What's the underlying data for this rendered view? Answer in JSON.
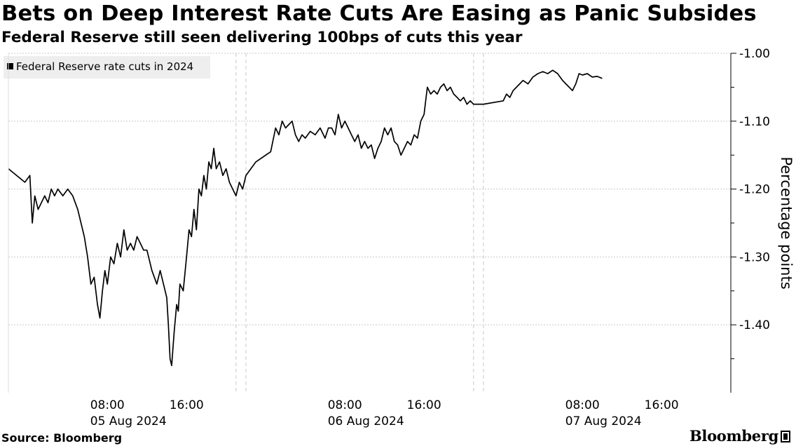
{
  "header": {
    "title": "Bets on Deep Interest Rate Cuts Are Easing as Panic Subsides",
    "subtitle": "Federal Reserve still seen delivering 100bps of cuts this year"
  },
  "footer": {
    "source": "Source: Bloomberg",
    "logo_text": "Bloomberg"
  },
  "colors": {
    "line": "#000000",
    "grid": "#c8c8c8",
    "legend_bg": "#eeeeee"
  },
  "chart_data": {
    "type": "line",
    "title": "Bets on Deep Interest Rate Cuts Are Easing as Panic Subsides",
    "subtitle": "Federal Reserve still seen delivering 100bps of cuts this year",
    "ylabel": "Percentage points",
    "y_inverted": true,
    "y_axis_position": "right",
    "ylim": [
      -1.0,
      -1.5
    ],
    "xlim": [
      "2024-08-04T22:00",
      "2024-08-07T23:00"
    ],
    "grid": "horizontal dotted",
    "legend": {
      "position": "top-left",
      "entries": [
        "Federal Reserve rate cuts in 2024"
      ]
    },
    "y_ticks": [
      {
        "value": -1.0,
        "label": "-1.00"
      },
      {
        "value": -1.1,
        "label": "-1.10"
      },
      {
        "value": -1.2,
        "label": "-1.20"
      },
      {
        "value": -1.3,
        "label": "-1.30"
      },
      {
        "value": -1.4,
        "label": "-1.40"
      }
    ],
    "x_ticks": [
      {
        "t": "2024-08-05T08:00",
        "time": "08:00",
        "date": "05 Aug 2024"
      },
      {
        "t": "2024-08-05T16:00",
        "time": "16:00",
        "date": ""
      },
      {
        "t": "2024-08-06T08:00",
        "time": "08:00",
        "date": "06 Aug 2024"
      },
      {
        "t": "2024-08-06T16:00",
        "time": "16:00",
        "date": ""
      },
      {
        "t": "2024-08-07T08:00",
        "time": "08:00",
        "date": "07 Aug 2024"
      },
      {
        "t": "2024-08-07T16:00",
        "time": "16:00",
        "date": ""
      }
    ],
    "session_breaks": [
      "2024-08-05T21:00",
      "2024-08-05T22:00",
      "2024-08-06T21:00",
      "2024-08-06T22:00"
    ],
    "series": [
      {
        "name": "Federal Reserve rate cuts in 2024",
        "points": [
          [
            "2024-08-04T22:00",
            -1.17
          ],
          [
            "2024-08-04T23:40",
            -1.19
          ],
          [
            "2024-08-05T00:10",
            -1.18
          ],
          [
            "2024-08-05T00:25",
            -1.25
          ],
          [
            "2024-08-05T00:40",
            -1.21
          ],
          [
            "2024-08-05T01:00",
            -1.23
          ],
          [
            "2024-08-05T01:20",
            -1.22
          ],
          [
            "2024-08-05T01:40",
            -1.21
          ],
          [
            "2024-08-05T02:00",
            -1.22
          ],
          [
            "2024-08-05T02:20",
            -1.2
          ],
          [
            "2024-08-05T02:40",
            -1.21
          ],
          [
            "2024-08-05T03:00",
            -1.2
          ],
          [
            "2024-08-05T03:30",
            -1.21
          ],
          [
            "2024-08-05T04:00",
            -1.2
          ],
          [
            "2024-08-05T04:30",
            -1.21
          ],
          [
            "2024-08-05T05:00",
            -1.23
          ],
          [
            "2024-08-05T05:20",
            -1.25
          ],
          [
            "2024-08-05T05:40",
            -1.27
          ],
          [
            "2024-08-05T06:00",
            -1.3
          ],
          [
            "2024-08-05T06:20",
            -1.34
          ],
          [
            "2024-08-05T06:40",
            -1.33
          ],
          [
            "2024-08-05T07:00",
            -1.37
          ],
          [
            "2024-08-05T07:15",
            -1.39
          ],
          [
            "2024-08-05T07:30",
            -1.35
          ],
          [
            "2024-08-05T07:45",
            -1.32
          ],
          [
            "2024-08-05T08:00",
            -1.34
          ],
          [
            "2024-08-05T08:20",
            -1.3
          ],
          [
            "2024-08-05T08:40",
            -1.31
          ],
          [
            "2024-08-05T09:00",
            -1.28
          ],
          [
            "2024-08-05T09:20",
            -1.3
          ],
          [
            "2024-08-05T09:40",
            -1.26
          ],
          [
            "2024-08-05T10:00",
            -1.29
          ],
          [
            "2024-08-05T10:20",
            -1.28
          ],
          [
            "2024-08-05T10:40",
            -1.29
          ],
          [
            "2024-08-05T11:00",
            -1.27
          ],
          [
            "2024-08-05T11:20",
            -1.28
          ],
          [
            "2024-08-05T11:40",
            -1.29
          ],
          [
            "2024-08-05T12:00",
            -1.29
          ],
          [
            "2024-08-05T12:30",
            -1.32
          ],
          [
            "2024-08-05T13:00",
            -1.34
          ],
          [
            "2024-08-05T13:20",
            -1.32
          ],
          [
            "2024-08-05T13:40",
            -1.34
          ],
          [
            "2024-08-05T14:00",
            -1.36
          ],
          [
            "2024-08-05T14:10",
            -1.4
          ],
          [
            "2024-08-05T14:20",
            -1.45
          ],
          [
            "2024-08-05T14:30",
            -1.46
          ],
          [
            "2024-08-05T14:45",
            -1.41
          ],
          [
            "2024-08-05T15:00",
            -1.37
          ],
          [
            "2024-08-05T15:10",
            -1.38
          ],
          [
            "2024-08-05T15:20",
            -1.34
          ],
          [
            "2024-08-05T15:40",
            -1.35
          ],
          [
            "2024-08-05T16:00",
            -1.3
          ],
          [
            "2024-08-05T16:15",
            -1.26
          ],
          [
            "2024-08-05T16:30",
            -1.27
          ],
          [
            "2024-08-05T16:45",
            -1.23
          ],
          [
            "2024-08-05T17:00",
            -1.26
          ],
          [
            "2024-08-05T17:15",
            -1.2
          ],
          [
            "2024-08-05T17:30",
            -1.21
          ],
          [
            "2024-08-05T17:45",
            -1.18
          ],
          [
            "2024-08-05T18:00",
            -1.2
          ],
          [
            "2024-08-05T18:15",
            -1.16
          ],
          [
            "2024-08-05T18:30",
            -1.17
          ],
          [
            "2024-08-05T18:45",
            -1.14
          ],
          [
            "2024-08-05T19:00",
            -1.17
          ],
          [
            "2024-08-05T19:20",
            -1.16
          ],
          [
            "2024-08-05T19:40",
            -1.18
          ],
          [
            "2024-08-05T20:00",
            -1.17
          ],
          [
            "2024-08-05T20:20",
            -1.19
          ],
          [
            "2024-08-05T20:40",
            -1.2
          ],
          [
            "2024-08-05T21:00",
            -1.21
          ],
          [
            "2024-08-05T21:20",
            -1.19
          ],
          [
            "2024-08-05T21:40",
            -1.2
          ],
          [
            "2024-08-05T22:00",
            -1.18
          ],
          [
            "2024-08-05T23:00",
            -1.16
          ],
          [
            "2024-08-06T00:30",
            -1.145
          ],
          [
            "2024-08-06T01:00",
            -1.11
          ],
          [
            "2024-08-06T01:20",
            -1.12
          ],
          [
            "2024-08-06T01:40",
            -1.1
          ],
          [
            "2024-08-06T02:00",
            -1.11
          ],
          [
            "2024-08-06T02:20",
            -1.105
          ],
          [
            "2024-08-06T02:40",
            -1.1
          ],
          [
            "2024-08-06T03:00",
            -1.12
          ],
          [
            "2024-08-06T03:20",
            -1.13
          ],
          [
            "2024-08-06T03:40",
            -1.12
          ],
          [
            "2024-08-06T04:00",
            -1.125
          ],
          [
            "2024-08-06T04:30",
            -1.115
          ],
          [
            "2024-08-06T05:00",
            -1.12
          ],
          [
            "2024-08-06T05:30",
            -1.11
          ],
          [
            "2024-08-06T06:00",
            -1.125
          ],
          [
            "2024-08-06T06:20",
            -1.11
          ],
          [
            "2024-08-06T06:40",
            -1.11
          ],
          [
            "2024-08-06T07:00",
            -1.12
          ],
          [
            "2024-08-06T07:20",
            -1.09
          ],
          [
            "2024-08-06T07:40",
            -1.11
          ],
          [
            "2024-08-06T08:00",
            -1.1
          ],
          [
            "2024-08-06T08:20",
            -1.11
          ],
          [
            "2024-08-06T08:40",
            -1.12
          ],
          [
            "2024-08-06T09:00",
            -1.13
          ],
          [
            "2024-08-06T09:20",
            -1.12
          ],
          [
            "2024-08-06T09:40",
            -1.14
          ],
          [
            "2024-08-06T10:00",
            -1.13
          ],
          [
            "2024-08-06T10:20",
            -1.14
          ],
          [
            "2024-08-06T10:40",
            -1.135
          ],
          [
            "2024-08-06T11:00",
            -1.155
          ],
          [
            "2024-08-06T11:20",
            -1.14
          ],
          [
            "2024-08-06T11:40",
            -1.13
          ],
          [
            "2024-08-06T12:00",
            -1.11
          ],
          [
            "2024-08-06T12:20",
            -1.12
          ],
          [
            "2024-08-06T12:40",
            -1.11
          ],
          [
            "2024-08-06T13:00",
            -1.13
          ],
          [
            "2024-08-06T13:20",
            -1.135
          ],
          [
            "2024-08-06T13:40",
            -1.15
          ],
          [
            "2024-08-06T14:00",
            -1.14
          ],
          [
            "2024-08-06T14:20",
            -1.13
          ],
          [
            "2024-08-06T14:40",
            -1.135
          ],
          [
            "2024-08-06T15:00",
            -1.12
          ],
          [
            "2024-08-06T15:20",
            -1.125
          ],
          [
            "2024-08-06T15:40",
            -1.1
          ],
          [
            "2024-08-06T16:00",
            -1.09
          ],
          [
            "2024-08-06T16:10",
            -1.07
          ],
          [
            "2024-08-06T16:20",
            -1.05
          ],
          [
            "2024-08-06T16:40",
            -1.06
          ],
          [
            "2024-08-06T17:00",
            -1.055
          ],
          [
            "2024-08-06T17:20",
            -1.06
          ],
          [
            "2024-08-06T17:40",
            -1.05
          ],
          [
            "2024-08-06T18:00",
            -1.045
          ],
          [
            "2024-08-06T18:20",
            -1.055
          ],
          [
            "2024-08-06T18:40",
            -1.05
          ],
          [
            "2024-08-06T19:00",
            -1.06
          ],
          [
            "2024-08-06T19:20",
            -1.065
          ],
          [
            "2024-08-06T19:40",
            -1.07
          ],
          [
            "2024-08-06T20:00",
            -1.065
          ],
          [
            "2024-08-06T20:20",
            -1.075
          ],
          [
            "2024-08-06T20:40",
            -1.07
          ],
          [
            "2024-08-06T21:00",
            -1.075
          ],
          [
            "2024-08-06T22:00",
            -1.075
          ],
          [
            "2024-08-07T00:00",
            -1.07
          ],
          [
            "2024-08-07T00:20",
            -1.06
          ],
          [
            "2024-08-07T00:40",
            -1.065
          ],
          [
            "2024-08-07T01:00",
            -1.055
          ],
          [
            "2024-08-07T01:20",
            -1.05
          ],
          [
            "2024-08-07T01:40",
            -1.045
          ],
          [
            "2024-08-07T02:00",
            -1.04
          ],
          [
            "2024-08-07T02:30",
            -1.045
          ],
          [
            "2024-08-07T03:00",
            -1.035
          ],
          [
            "2024-08-07T03:30",
            -1.03
          ],
          [
            "2024-08-07T04:00",
            -1.027
          ],
          [
            "2024-08-07T04:30",
            -1.03
          ],
          [
            "2024-08-07T05:00",
            -1.025
          ],
          [
            "2024-08-07T05:30",
            -1.03
          ],
          [
            "2024-08-07T06:00",
            -1.04
          ],
          [
            "2024-08-07T06:20",
            -1.045
          ],
          [
            "2024-08-07T06:40",
            -1.05
          ],
          [
            "2024-08-07T07:00",
            -1.055
          ],
          [
            "2024-08-07T07:20",
            -1.045
          ],
          [
            "2024-08-07T07:40",
            -1.03
          ],
          [
            "2024-08-07T08:00",
            -1.032
          ],
          [
            "2024-08-07T08:30",
            -1.03
          ],
          [
            "2024-08-07T09:00",
            -1.035
          ],
          [
            "2024-08-07T09:30",
            -1.034
          ],
          [
            "2024-08-07T10:00",
            -1.037
          ]
        ]
      }
    ]
  }
}
